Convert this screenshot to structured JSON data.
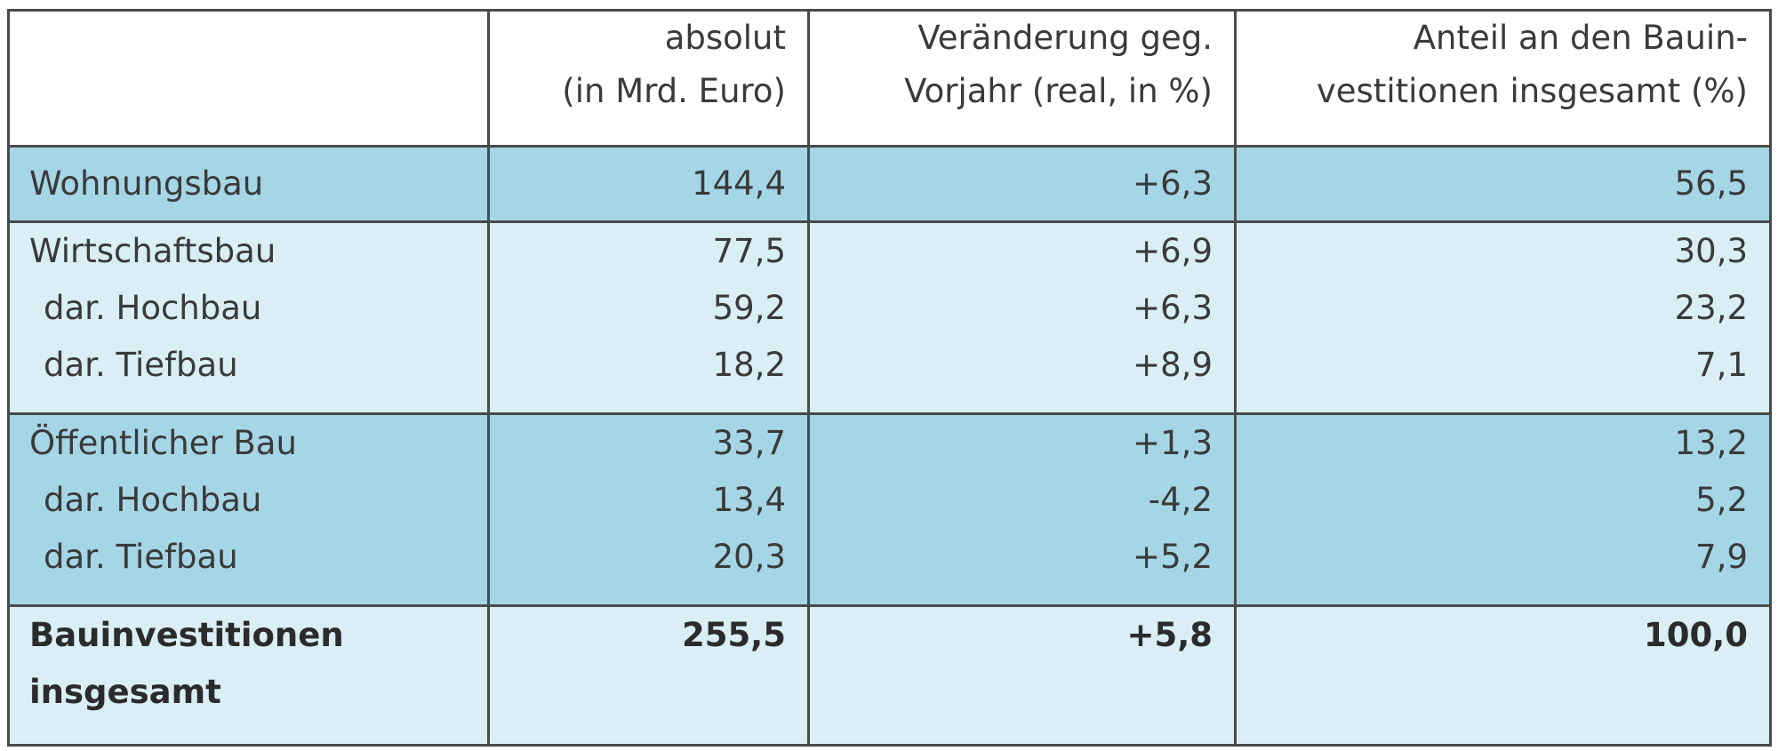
{
  "headers": {
    "absolut": [
      "absolut",
      "(in Mrd. Euro)"
    ],
    "change": [
      "Veränderung geg.",
      "Vorjahr (real, in %)"
    ],
    "share": [
      "Anteil an den Bauin-",
      "vestitionen insgesamt (%)"
    ]
  },
  "rows": {
    "wohnungsbau": {
      "label": "Wohnungsbau",
      "absolut": "144,4",
      "change": "+6,3",
      "share": "56,5"
    },
    "wirtschaftsbau": {
      "label": "Wirtschaftsbau",
      "absolut": "77,5",
      "change": "+6,9",
      "share": "30,3",
      "hochbau": {
        "label": "dar. Hochbau",
        "absolut": "59,2",
        "change": "+6,3",
        "share": "23,2"
      },
      "tiefbau": {
        "label": "dar. Tiefbau",
        "absolut": "18,2",
        "change": "+8,9",
        "share": "7,1"
      }
    },
    "oeffentlich": {
      "label": "Öffentlicher Bau",
      "absolut": "33,7",
      "change": "+1,3",
      "share": "13,2",
      "hochbau": {
        "label": "dar. Hochbau",
        "absolut": "13,4",
        "change": "-4,2",
        "share": "5,2"
      },
      "tiefbau": {
        "label": "dar. Tiefbau",
        "absolut": "20,3",
        "change": "+5,2",
        "share": "7,9"
      }
    },
    "total": {
      "label": [
        "Bauinvestitionen",
        "insgesamt"
      ],
      "absolut": "255,5",
      "change": "+5,8",
      "share": "100,0"
    }
  },
  "colors": {
    "dark_row": "#a5d6e6",
    "light_row": "#d9eef5",
    "border": "#4a4a4a"
  }
}
